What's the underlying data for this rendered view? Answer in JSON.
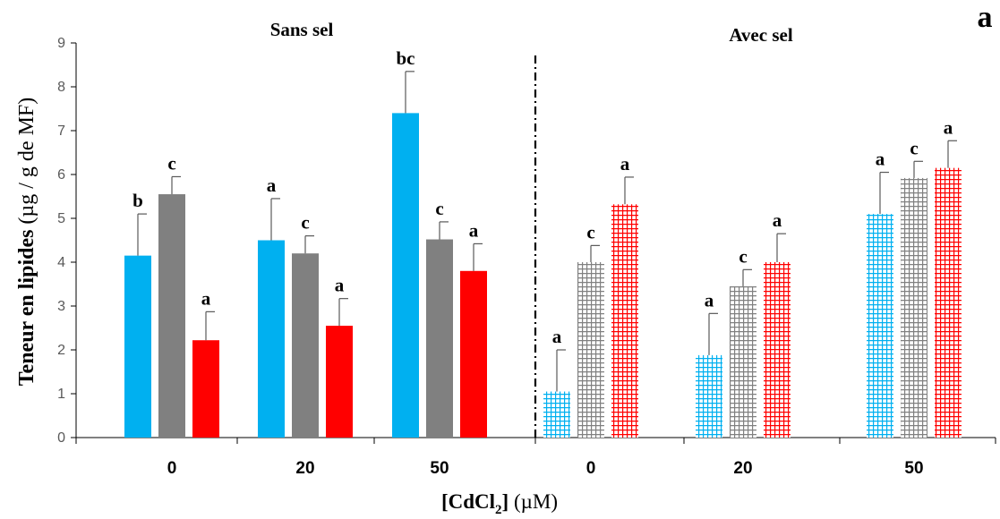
{
  "chart_data": {
    "type": "bar",
    "panel_label": "a",
    "ylabel_main": "Teneur en lipides",
    "ylabel_unit": "(µg / g de MF)",
    "xlabel_main": "[CdCl",
    "xlabel_sub": "2",
    "xlabel_close": "]",
    "xlabel_unit": "(µM)",
    "ylim": [
      0,
      9
    ],
    "yticks": [
      "0",
      "1",
      "2",
      "3",
      "4",
      "5",
      "6",
      "7",
      "8",
      "9"
    ],
    "grid": false,
    "series_colors": [
      "#00b0f0",
      "#808080",
      "#ff0000"
    ],
    "groups": [
      {
        "title": "Sans sel",
        "pattern": "solid",
        "categories": [
          {
            "label": "0",
            "values": [
              4.15,
              5.55,
              2.22
            ],
            "errors": [
              0.95,
              0.4,
              0.65
            ],
            "letters": [
              "b",
              "c",
              "a"
            ]
          },
          {
            "label": "20",
            "values": [
              4.5,
              4.2,
              2.55
            ],
            "errors": [
              0.95,
              0.4,
              0.62
            ],
            "letters": [
              "a",
              "c",
              "a"
            ]
          },
          {
            "label": "50",
            "values": [
              7.4,
              4.52,
              3.8
            ],
            "errors": [
              0.95,
              0.4,
              0.62
            ],
            "letters": [
              "bc",
              "c",
              "a"
            ]
          }
        ]
      },
      {
        "title": "Avec sel",
        "pattern": "grid",
        "categories": [
          {
            "label": "0",
            "values": [
              1.05,
              4.0,
              5.32
            ],
            "errors": [
              0.95,
              0.38,
              0.62
            ],
            "letters": [
              "a",
              "c",
              "a"
            ]
          },
          {
            "label": "20",
            "values": [
              1.88,
              3.45,
              4.0
            ],
            "errors": [
              0.95,
              0.38,
              0.65
            ],
            "letters": [
              "a",
              "c",
              "a"
            ]
          },
          {
            "label": "50",
            "values": [
              5.1,
              5.92,
              6.15
            ],
            "errors": [
              0.95,
              0.38,
              0.62
            ],
            "letters": [
              "a",
              "c",
              "a"
            ]
          }
        ]
      }
    ]
  }
}
